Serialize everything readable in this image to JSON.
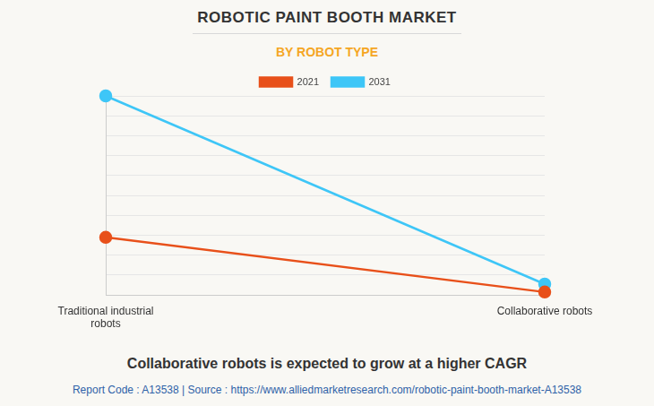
{
  "chart_data": {
    "type": "line",
    "title": "ROBOTIC PAINT BOOTH MARKET",
    "subtitle": "BY ROBOT TYPE",
    "categories": [
      "Traditional industrial robots",
      "Collaborative robots"
    ],
    "series": [
      {
        "name": "2021",
        "color": "#e8501a",
        "values": [
          2.9,
          0.15
        ]
      },
      {
        "name": "2031",
        "color": "#3ec6f7",
        "values": [
          10,
          0.55
        ]
      }
    ],
    "ylim": [
      0,
      10
    ],
    "yticks": [
      0,
      1,
      2,
      3,
      4,
      5,
      6,
      7,
      8,
      9,
      10
    ],
    "grid": true,
    "legend": "top",
    "marker": "circle",
    "tick_labels": "x",
    "annotations": [
      "Collaborative robots is expected to grow at a higher CAGR",
      "Report Code : A13538  |  Source : https://www.alliedmarketresearch.com/robotic-paint-booth-market-A13538"
    ]
  }
}
